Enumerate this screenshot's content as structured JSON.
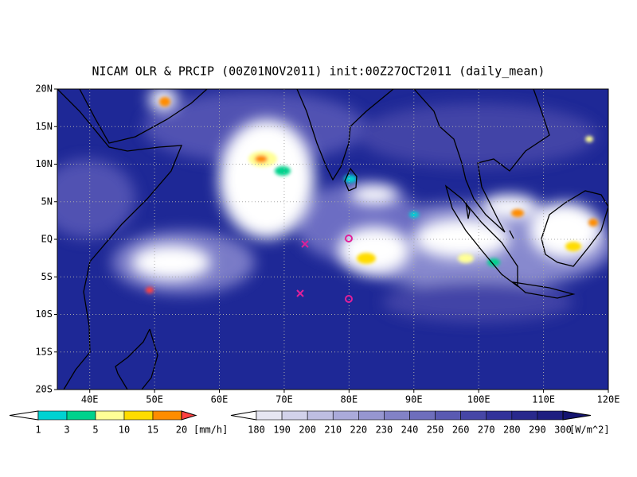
{
  "map": {
    "title": "NICAM OLR & PRCIP (00Z01NOV2011) init:00Z27OCT2011 (daily_mean)",
    "lat_labels": [
      "20N",
      "15N",
      "10N",
      "5N",
      "EQ",
      "5S",
      "10S",
      "15S",
      "20S"
    ],
    "lon_labels": [
      "40E",
      "50E",
      "60E",
      "70E",
      "80E",
      "90E",
      "100E",
      "110E",
      "120E"
    ]
  },
  "legends": [
    {
      "ticks": [
        "1",
        "3",
        "5",
        "10",
        "15",
        "20"
      ],
      "unit": "[mm/h]",
      "colors": [
        "#ffffff",
        "#00d2d2",
        "#00d28c",
        "#ffff96",
        "#ffdc00",
        "#ff8c00",
        "#ff4040"
      ]
    },
    {
      "ticks": [
        "180",
        "190",
        "200",
        "210",
        "220",
        "230",
        "240",
        "250",
        "260",
        "270",
        "280",
        "290",
        "300"
      ],
      "unit": "[W/m^2]",
      "colors": [
        "#ffffff",
        "#e6e6f2",
        "#d2d2ea",
        "#bebee2",
        "#aaaada",
        "#9696d0",
        "#8282c6",
        "#6e6ebc",
        "#5a5ab2",
        "#4646a6",
        "#32329a",
        "#28288c",
        "#1e1e80",
        "#141470"
      ]
    }
  ]
}
